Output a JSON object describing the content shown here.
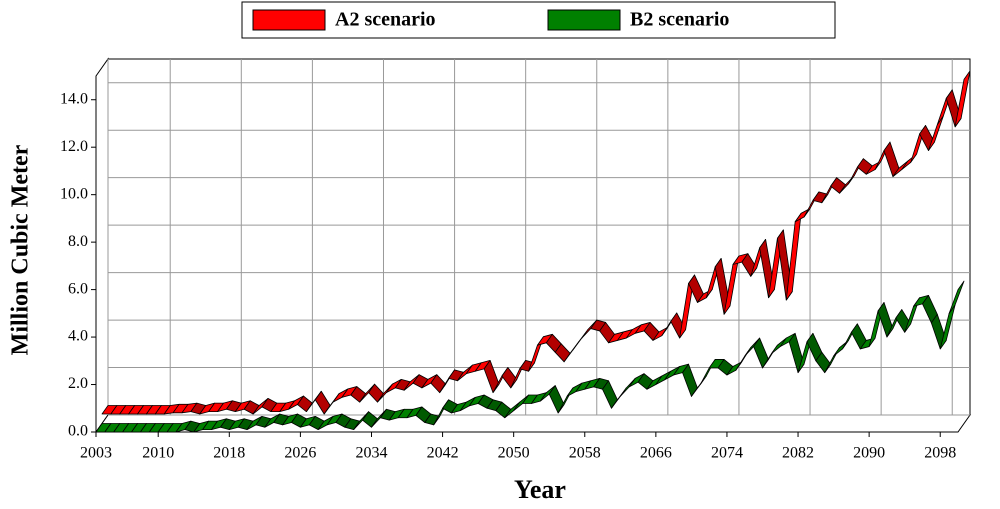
{
  "chart_data": {
    "type": "ribbon3d",
    "xlabel": "Year",
    "ylabel": "Million Cubic Meter",
    "x": [
      2003,
      2004,
      2005,
      2006,
      2007,
      2008,
      2009,
      2010,
      2011,
      2012,
      2013,
      2014,
      2015,
      2016,
      2017,
      2018,
      2019,
      2020,
      2021,
      2022,
      2023,
      2024,
      2025,
      2026,
      2027,
      2028,
      2029,
      2030,
      2031,
      2032,
      2033,
      2034,
      2035,
      2036,
      2037,
      2038,
      2039,
      2040,
      2041,
      2042,
      2043,
      2044,
      2045,
      2046,
      2047,
      2048,
      2049,
      2050,
      2051,
      2052,
      2053,
      2054,
      2055,
      2056,
      2057,
      2058,
      2059,
      2060,
      2061,
      2062,
      2063,
      2064,
      2065,
      2066,
      2067,
      2068,
      2069,
      2070,
      2071,
      2072,
      2073,
      2074,
      2075,
      2076,
      2077,
      2078,
      2079,
      2080,
      2081,
      2082,
      2083,
      2084,
      2085,
      2086,
      2087,
      2088,
      2089,
      2090,
      2091,
      2092,
      2093,
      2094,
      2095,
      2096,
      2097,
      2098,
      2099,
      2100
    ],
    "series": [
      {
        "name": "A2 scenario",
        "color": "#ff0000",
        "values": [
          0.4,
          0.4,
          0.4,
          0.4,
          0.4,
          0.4,
          0.4,
          0.4,
          0.45,
          0.45,
          0.5,
          0.4,
          0.5,
          0.5,
          0.6,
          0.5,
          0.6,
          0.4,
          0.7,
          0.5,
          0.5,
          0.6,
          0.8,
          0.5,
          1.0,
          0.4,
          0.9,
          1.1,
          1.2,
          0.9,
          1.3,
          0.9,
          1.3,
          1.5,
          1.4,
          1.7,
          1.5,
          1.7,
          1.3,
          1.9,
          1.8,
          2.1,
          2.2,
          2.3,
          1.3,
          2.0,
          1.5,
          2.3,
          2.2,
          3.3,
          3.4,
          3.0,
          2.6,
          3.1,
          3.6,
          4.0,
          3.9,
          3.4,
          3.5,
          3.6,
          3.8,
          3.9,
          3.5,
          3.7,
          4.3,
          3.6,
          5.9,
          5.1,
          5.3,
          6.6,
          4.6,
          6.7,
          6.8,
          6.2,
          7.4,
          5.3,
          7.8,
          5.2,
          8.5,
          8.7,
          9.4,
          9.3,
          10.0,
          9.7,
          10.1,
          10.8,
          10.5,
          10.7,
          11.5,
          10.4,
          10.7,
          11.0,
          12.2,
          11.5,
          12.6,
          13.7,
          12.5,
          14.5
        ]
      },
      {
        "name": "B2 scenario",
        "color": "#008000",
        "values": [
          0,
          0,
          0,
          0,
          0,
          0,
          0,
          0,
          0,
          0,
          0.1,
          0,
          0.1,
          0.1,
          0.2,
          0.1,
          0.2,
          0.1,
          0.3,
          0.2,
          0.4,
          0.3,
          0.4,
          0.2,
          0.3,
          0.1,
          0.3,
          0.4,
          0.2,
          0.1,
          0.5,
          0.2,
          0.6,
          0.5,
          0.6,
          0.6,
          0.7,
          0.4,
          0.3,
          1.0,
          0.8,
          0.9,
          1.1,
          1.2,
          1.0,
          0.9,
          0.6,
          0.9,
          1.2,
          1.2,
          1.3,
          1.6,
          0.8,
          1.5,
          1.7,
          1.8,
          1.9,
          1.8,
          1.0,
          1.5,
          1.9,
          2.1,
          1.8,
          2.0,
          2.2,
          2.4,
          2.5,
          1.5,
          2.0,
          2.7,
          2.7,
          2.4,
          2.6,
          3.2,
          3.6,
          2.7,
          3.3,
          3.6,
          3.8,
          2.5,
          3.8,
          3.0,
          2.5,
          3.2,
          3.5,
          4.2,
          3.5,
          3.6,
          5.1,
          4.0,
          4.8,
          4.2,
          5.3,
          5.4,
          4.6,
          3.5,
          5.0,
          6.0
        ]
      }
    ],
    "xlim": [
      2003,
      2100
    ],
    "xticks": [
      2003,
      2010,
      2018,
      2026,
      2034,
      2042,
      2050,
      2058,
      2066,
      2074,
      2082,
      2090,
      2098
    ],
    "ylim": [
      0,
      15
    ],
    "yticks": [
      {
        "value": 0,
        "label": "0.0"
      },
      {
        "value": 2,
        "label": "2.0"
      },
      {
        "value": 4,
        "label": "4.0"
      },
      {
        "value": 6,
        "label": "6.0"
      },
      {
        "value": 8,
        "label": "8.0"
      },
      {
        "value": 10,
        "label": "10.0"
      },
      {
        "value": 12,
        "label": "12.0"
      },
      {
        "value": 14,
        "label": "14.0"
      }
    ],
    "grid": true,
    "legend": "top"
  }
}
